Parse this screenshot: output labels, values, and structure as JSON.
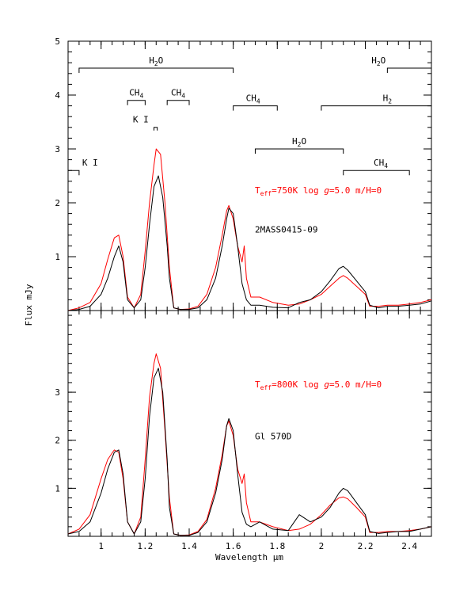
{
  "chart_data": [
    {
      "type": "line",
      "panel": "top",
      "xlabel": "Wavelength μm",
      "ylabel": "Flux mJy",
      "xlim": [
        0.85,
        2.5
      ],
      "ylim": [
        0,
        5
      ],
      "yticks": [
        "1",
        "2",
        "3",
        "4",
        "5"
      ],
      "xticks": [
        "1",
        "1.2",
        "1.4",
        "1.6",
        "1.8",
        "2",
        "2.2",
        "2.4"
      ],
      "object_label": "2MASS0415-09",
      "model_label": "Teff=750K log g=5.0 m/H=0",
      "model_label_parts": {
        "t": "T",
        "eff": "eff",
        "rest": "=750K log ",
        "g": "g",
        "tail": "=5.0 m/H=0"
      },
      "series": [
        {
          "name": "2MASS0415-09",
          "color": "#000000",
          "x": [
            0.85,
            0.9,
            0.95,
            1.0,
            1.03,
            1.06,
            1.08,
            1.1,
            1.12,
            1.15,
            1.18,
            1.2,
            1.22,
            1.24,
            1.26,
            1.28,
            1.3,
            1.31,
            1.33,
            1.36,
            1.4,
            1.44,
            1.48,
            1.52,
            1.55,
            1.57,
            1.58,
            1.6,
            1.62,
            1.64,
            1.66,
            1.68,
            1.72,
            1.78,
            1.85,
            1.9,
            1.95,
            2.0,
            2.04,
            2.08,
            2.1,
            2.12,
            2.16,
            2.2,
            2.22,
            2.26,
            2.3,
            2.35,
            2.4,
            2.45,
            2.5
          ],
          "y": [
            0.0,
            0.02,
            0.08,
            0.3,
            0.6,
            1.0,
            1.2,
            0.9,
            0.2,
            0.05,
            0.2,
            0.8,
            1.6,
            2.3,
            2.5,
            2.1,
            1.2,
            0.6,
            0.05,
            0.02,
            0.02,
            0.05,
            0.2,
            0.6,
            1.2,
            1.7,
            1.9,
            1.8,
            1.2,
            0.5,
            0.2,
            0.1,
            0.1,
            0.06,
            0.05,
            0.15,
            0.2,
            0.35,
            0.55,
            0.78,
            0.82,
            0.75,
            0.55,
            0.35,
            0.1,
            0.05,
            0.08,
            0.08,
            0.1,
            0.12,
            0.18
          ]
        },
        {
          "name": "Teff=750K log g=5.0 m/H=0",
          "color": "#ff0000",
          "x": [
            0.85,
            0.9,
            0.95,
            1.0,
            1.03,
            1.06,
            1.08,
            1.1,
            1.12,
            1.15,
            1.18,
            1.2,
            1.22,
            1.24,
            1.25,
            1.27,
            1.29,
            1.31,
            1.33,
            1.36,
            1.4,
            1.44,
            1.48,
            1.52,
            1.55,
            1.57,
            1.58,
            1.6,
            1.62,
            1.64,
            1.65,
            1.66,
            1.68,
            1.72,
            1.78,
            1.85,
            1.9,
            1.95,
            2.0,
            2.04,
            2.08,
            2.1,
            2.12,
            2.16,
            2.2,
            2.22,
            2.26,
            2.3,
            2.35,
            2.4,
            2.45,
            2.5
          ],
          "y": [
            0.0,
            0.05,
            0.15,
            0.5,
            0.95,
            1.35,
            1.4,
            1.0,
            0.25,
            0.05,
            0.3,
            1.1,
            2.0,
            2.7,
            3.0,
            2.9,
            2.0,
            0.8,
            0.05,
            0.02,
            0.03,
            0.08,
            0.3,
            0.8,
            1.4,
            1.85,
            1.95,
            1.7,
            1.2,
            0.9,
            1.2,
            0.6,
            0.25,
            0.25,
            0.15,
            0.1,
            0.12,
            0.2,
            0.3,
            0.45,
            0.6,
            0.65,
            0.6,
            0.45,
            0.3,
            0.08,
            0.08,
            0.1,
            0.1,
            0.12,
            0.15,
            0.2
          ]
        }
      ]
    },
    {
      "type": "line",
      "panel": "bottom",
      "xlabel": "Wavelength μm",
      "ylabel": "Flux mJy",
      "xlim": [
        0.85,
        2.5
      ],
      "ylim": [
        0,
        4.7
      ],
      "yticks": [
        "1",
        "2",
        "3"
      ],
      "object_label": "Gl 570D",
      "model_label": "Teff=800K log g=5.0 m/H=0",
      "model_label_parts": {
        "t": "T",
        "eff": "eff",
        "rest": "=800K log ",
        "g": "g",
        "tail": "=5.0 m/H=0"
      },
      "series": [
        {
          "name": "Gl 570D",
          "color": "#000000",
          "x": [
            0.85,
            0.9,
            0.95,
            1.0,
            1.03,
            1.06,
            1.08,
            1.1,
            1.12,
            1.15,
            1.18,
            1.2,
            1.22,
            1.24,
            1.26,
            1.28,
            1.3,
            1.31,
            1.33,
            1.36,
            1.4,
            1.44,
            1.48,
            1.52,
            1.55,
            1.57,
            1.58,
            1.6,
            1.62,
            1.64,
            1.66,
            1.68,
            1.72,
            1.78,
            1.85,
            1.9,
            1.95,
            2.0,
            2.04,
            2.08,
            2.1,
            2.12,
            2.16,
            2.2,
            2.22,
            2.26,
            2.3,
            2.35,
            2.4,
            2.45,
            2.5
          ],
          "y": [
            0.05,
            0.1,
            0.3,
            0.9,
            1.4,
            1.75,
            1.8,
            1.3,
            0.3,
            0.05,
            0.3,
            1.2,
            2.5,
            3.3,
            3.5,
            3.0,
            1.6,
            0.6,
            0.05,
            0.02,
            0.02,
            0.08,
            0.3,
            0.9,
            1.6,
            2.3,
            2.45,
            2.2,
            1.3,
            0.5,
            0.25,
            0.2,
            0.3,
            0.15,
            0.12,
            0.45,
            0.3,
            0.4,
            0.6,
            0.9,
            1.0,
            0.95,
            0.7,
            0.45,
            0.1,
            0.06,
            0.08,
            0.1,
            0.1,
            0.15,
            0.2
          ]
        },
        {
          "name": "Teff=800K log g=5.0 m/H=0",
          "color": "#ff0000",
          "x": [
            0.85,
            0.9,
            0.95,
            1.0,
            1.03,
            1.06,
            1.08,
            1.1,
            1.12,
            1.15,
            1.18,
            1.2,
            1.22,
            1.24,
            1.25,
            1.27,
            1.29,
            1.31,
            1.33,
            1.36,
            1.4,
            1.44,
            1.48,
            1.52,
            1.55,
            1.57,
            1.58,
            1.6,
            1.62,
            1.64,
            1.65,
            1.66,
            1.68,
            1.72,
            1.78,
            1.85,
            1.9,
            1.95,
            2.0,
            2.04,
            2.08,
            2.1,
            2.12,
            2.16,
            2.2,
            2.22,
            2.26,
            2.3,
            2.35,
            2.4,
            2.45,
            2.5
          ],
          "y": [
            0.05,
            0.15,
            0.45,
            1.2,
            1.6,
            1.8,
            1.75,
            1.2,
            0.3,
            0.05,
            0.4,
            1.6,
            2.9,
            3.6,
            3.8,
            3.5,
            2.2,
            0.8,
            0.05,
            0.02,
            0.03,
            0.1,
            0.35,
            1.0,
            1.7,
            2.3,
            2.4,
            2.1,
            1.4,
            1.1,
            1.3,
            0.7,
            0.3,
            0.3,
            0.2,
            0.12,
            0.15,
            0.25,
            0.45,
            0.65,
            0.8,
            0.82,
            0.78,
            0.6,
            0.4,
            0.08,
            0.08,
            0.1,
            0.1,
            0.12,
            0.15,
            0.2
          ]
        }
      ]
    }
  ],
  "annotations": [
    {
      "base": "H",
      "sub": "2",
      "tail": "O",
      "x1": 0.9,
      "x2": 1.6,
      "y": 4.5,
      "lx": 1.25,
      "ly": 4.65
    },
    {
      "base": "CH",
      "sub": "4",
      "tail": "",
      "x1": 1.12,
      "x2": 1.2,
      "y": 3.9,
      "lx": 1.16,
      "ly": 4.05
    },
    {
      "base": "CH",
      "sub": "4",
      "tail": "",
      "x1": 1.3,
      "x2": 1.4,
      "y": 3.9,
      "lx": 1.35,
      "ly": 4.05
    },
    {
      "base": "K I",
      "sub": "",
      "tail": "",
      "x1": 1.24,
      "x2": 1.255,
      "y": 3.4,
      "lx": 1.18,
      "ly": 3.55
    },
    {
      "base": "K I",
      "sub": "",
      "tail": "",
      "x1": 0.85,
      "x2": 0.9,
      "y": 2.6,
      "lx": 0.95,
      "ly": 2.75
    },
    {
      "base": "CH",
      "sub": "4",
      "tail": "",
      "x1": 1.6,
      "x2": 1.8,
      "y": 3.8,
      "lx": 1.69,
      "ly": 3.95
    },
    {
      "base": "H",
      "sub": "2",
      "tail": "O",
      "x1": 1.7,
      "x2": 2.1,
      "y": 3.0,
      "lx": 1.9,
      "ly": 3.15
    },
    {
      "base": "CH",
      "sub": "4",
      "tail": "",
      "x1": 2.1,
      "x2": 2.4,
      "y": 2.6,
      "lx": 2.27,
      "ly": 2.75
    },
    {
      "base": "H",
      "sub": "2",
      "tail": "O",
      "x1": 2.3,
      "x2": 2.5,
      "y": 4.5,
      "lx": 2.26,
      "ly": 4.65
    },
    {
      "base": "H",
      "sub": "2",
      "tail": "",
      "x1": 2.0,
      "x2": 2.5,
      "y": 3.8,
      "lx": 2.3,
      "ly": 3.95
    }
  ],
  "colors": {
    "observed": "#000000",
    "model": "#ff0000",
    "axes": "#000000"
  }
}
